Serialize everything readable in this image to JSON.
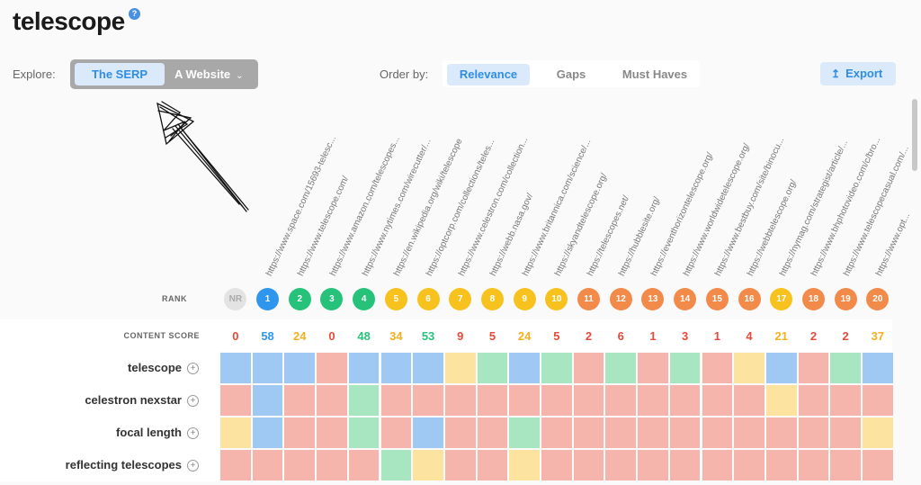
{
  "header": {
    "title": "telescope",
    "help_icon": "help-icon"
  },
  "explore": {
    "label": "Explore:",
    "tabs": [
      "The SERP",
      "A Website"
    ],
    "selected": "The SERP",
    "chevron_icon": "chevron-down-icon"
  },
  "order": {
    "label": "Order by:",
    "options": [
      "Relevance",
      "Gaps",
      "Must Haves"
    ],
    "selected": "Relevance"
  },
  "export": {
    "label": "Export",
    "icon": "upload-icon"
  },
  "urls": [
    "https://www.space.com/15693-telesc...",
    "https://www.telescope.com/",
    "https://www.amazon.com/telescopes...",
    "https://www.nytimes.com/wirecutter/...",
    "https://en.wikipedia.org/wiki/telescope",
    "https://optcorp.com/collections/teles...",
    "https://www.celestron.com/collection...",
    "https://webb.nasa.gov/",
    "https://www.britannica.com/science/...",
    "https://skyandtelescope.org/",
    "https://telescopes.net/",
    "https://hubblesite.org/",
    "https://eventhorizontelescope.org/",
    "https://www.worldwidetelescope.org/",
    "https://www.bestbuy.com/site/binocu...",
    "https://webbtelescope.org/",
    "https://nymag.com/strategist/article/...",
    "https://www.bhphotovideo.com/c/bro...",
    "https://www.telescopecasual.com/...",
    "https://www.opt..."
  ],
  "rank": {
    "label": "RANK",
    "items": [
      "NR",
      "1",
      "2",
      "3",
      "4",
      "5",
      "6",
      "7",
      "8",
      "9",
      "10",
      "11",
      "12",
      "13",
      "14",
      "15",
      "16",
      "17",
      "18",
      "19",
      "20"
    ]
  },
  "content_score": {
    "label": "CONTENT SCORE",
    "values": [
      "0",
      "58",
      "24",
      "0",
      "48",
      "34",
      "53",
      "9",
      "5",
      "24",
      "5",
      "2",
      "6",
      "1",
      "3",
      "1",
      "4",
      "21",
      "2",
      "2",
      "37"
    ]
  },
  "keywords": [
    {
      "name": "telescope",
      "cells": [
        "blue",
        "blue",
        "blue",
        "red",
        "blue",
        "blue",
        "blue",
        "yellow",
        "green",
        "blue",
        "green",
        "red",
        "green",
        "red",
        "green",
        "red",
        "yellow",
        "blue",
        "red",
        "green",
        "blue"
      ]
    },
    {
      "name": "celestron nexstar",
      "cells": [
        "red",
        "blue",
        "red",
        "red",
        "green",
        "red",
        "red",
        "red",
        "red",
        "red",
        "red",
        "red",
        "red",
        "red",
        "red",
        "red",
        "red",
        "yellow",
        "red",
        "red",
        "red"
      ]
    },
    {
      "name": "focal length",
      "cells": [
        "yellow",
        "blue",
        "red",
        "red",
        "green",
        "red",
        "blue",
        "red",
        "red",
        "green",
        "red",
        "red",
        "red",
        "red",
        "red",
        "red",
        "red",
        "red",
        "red",
        "red",
        "yellow"
      ]
    },
    {
      "name": "reflecting telescopes",
      "cells": [
        "red",
        "red",
        "red",
        "red",
        "red",
        "green",
        "yellow",
        "red",
        "red",
        "yellow",
        "red",
        "red",
        "red",
        "red",
        "red",
        "red",
        "red",
        "red",
        "red",
        "red",
        "red"
      ]
    }
  ],
  "colors": {
    "cell": {
      "blue": "#9fc9f2",
      "red": "#f5b5ad",
      "green": "#a8e6c2",
      "yellow": "#fde3a0"
    },
    "rank": [
      "#e3e3e3",
      "#2f96ee",
      "#27c27a",
      "#27c27a",
      "#27c27a",
      "#f7c21e",
      "#f7c21e",
      "#f7c21e",
      "#f7c21e",
      "#f7c21e",
      "#f7c21e",
      "#f28a4a",
      "#f28a4a",
      "#f28a4a",
      "#f28a4a",
      "#f28a4a",
      "#f28a4a",
      "#f7c21e",
      "#f28a4a",
      "#f28a4a",
      "#f28a4a"
    ],
    "score": [
      "#e84a3a",
      "#2f96ee",
      "#f2b01e",
      "#e84a3a",
      "#27c27a",
      "#f2b01e",
      "#27c27a",
      "#e84a3a",
      "#e84a3a",
      "#f2b01e",
      "#e84a3a",
      "#e84a3a",
      "#e84a3a",
      "#e84a3a",
      "#e84a3a",
      "#e84a3a",
      "#e84a3a",
      "#f2b01e",
      "#e84a3a",
      "#e84a3a",
      "#f2b01e"
    ]
  }
}
